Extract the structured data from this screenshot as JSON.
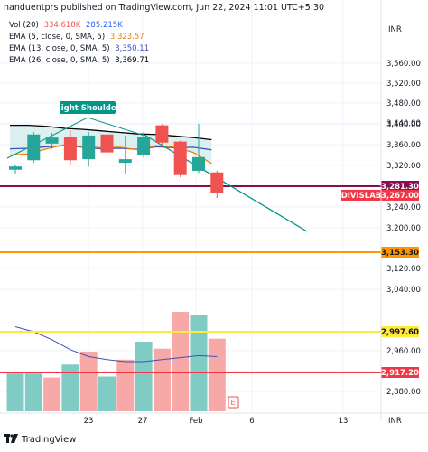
{
  "header": {
    "publisher_line": "nanduentprs published on TradingView.com, Jun 22, 2024 11:01 UTC+5:30"
  },
  "legend": {
    "vol": {
      "name": "Vol (20)",
      "v1": "334.618K",
      "v2": "285.215K",
      "c1": "#ef5350",
      "c2": "#2962ff"
    },
    "ema5": {
      "name": "EMA (5, close, 0, SMA, 5)",
      "value": "3,323.57",
      "color": "#f57c00"
    },
    "ema13": {
      "name": "EMA (13, close, 0, SMA, 5)",
      "value": "3,350.11",
      "color": "#3f51b5"
    },
    "ema26": {
      "name": "EMA (26, close, 0, SMA, 5)",
      "value": "3,369.71",
      "color": "#000000"
    }
  },
  "annotation": {
    "text": "Right Shoulder",
    "color": "#009688"
  },
  "footer": {
    "brand": "TradingView"
  },
  "chart_data": {
    "type": "candlestick",
    "currency": "INR",
    "y_ticks": [
      2880,
      2960,
      3040,
      3120,
      3200,
      3240,
      3320,
      3360,
      3400,
      3440,
      3480,
      3520,
      3560
    ],
    "y_tick_labels": [
      "2,880.00",
      "2,960.00",
      "3,040.00",
      "3,120.00",
      "3,200.00",
      "3,240.00",
      "3,320.00",
      "3,360.00",
      "3,400.00",
      "3,440.00",
      "3,480.00",
      "3,520.00",
      "3,560.00"
    ],
    "x_ticks": [
      "23",
      "27",
      "Feb",
      "6",
      "13"
    ],
    "candles": [
      {
        "o": 3312,
        "h": 3322,
        "l": 3305,
        "c": 3318
      },
      {
        "o": 3330,
        "h": 3385,
        "l": 3325,
        "c": 3380
      },
      {
        "o": 3362,
        "h": 3383,
        "l": 3352,
        "c": 3374
      },
      {
        "o": 3375,
        "h": 3388,
        "l": 3320,
        "c": 3330
      },
      {
        "o": 3332,
        "h": 3385,
        "l": 3318,
        "c": 3378
      },
      {
        "o": 3380,
        "h": 3386,
        "l": 3340,
        "c": 3345
      },
      {
        "o": 3325,
        "h": 3378,
        "l": 3305,
        "c": 3332
      },
      {
        "o": 3340,
        "h": 3385,
        "l": 3335,
        "c": 3375
      },
      {
        "o": 3398,
        "h": 3404,
        "l": 3358,
        "c": 3364
      },
      {
        "o": 3366,
        "h": 3368,
        "l": 3298,
        "c": 3302
      },
      {
        "o": 3310,
        "h": 3418,
        "l": 3306,
        "c": 3336
      },
      {
        "o": 3307,
        "h": 3310,
        "l": 3258,
        "c": 3267
      }
    ],
    "volume": [
      0.38,
      0.38,
      0.34,
      0.47,
      0.6,
      0.35,
      0.52,
      0.7,
      0.63,
      1.0,
      0.97,
      0.73
    ],
    "ema5": [
      3340,
      3342,
      3352,
      3360,
      3356,
      3354,
      3355,
      3350,
      3358,
      3355,
      3345,
      3323.57
    ],
    "ema13": [
      3352,
      3353,
      3356,
      3358,
      3355,
      3352,
      3353,
      3351,
      3356,
      3354,
      3355,
      3350.11
    ],
    "ema26": [
      3398,
      3398,
      3396,
      3392,
      3390,
      3387,
      3384,
      3381,
      3380,
      3377,
      3374,
      3369.71
    ],
    "vol_ma": [
      0.85,
      0.8,
      0.72,
      0.62,
      0.55,
      0.52,
      0.5,
      0.5,
      0.52,
      0.54,
      0.56,
      0.55
    ],
    "h_lines": [
      {
        "value": 3281.3,
        "label": "3,281.30",
        "color": "#880e4f"
      },
      {
        "value": 3153.3,
        "label": "3,153.30",
        "color": "#ff9800"
      },
      {
        "value": 2997.6,
        "label": "2,997.60",
        "color": "#ffeb3b"
      },
      {
        "value": 2917.2,
        "label": "2,917.20",
        "color": "#f23645"
      }
    ],
    "last_price": {
      "symbol": "DIVISLAB",
      "value": "3,267.00",
      "color": "#f23645"
    },
    "trendline": {
      "from_index": 5,
      "from_price": 3405,
      "to_index": 17,
      "to_price": 3188
    },
    "volume_colors": [
      "#26a69a",
      "#26a69a",
      "#ef5350",
      "#26a69a",
      "#ef5350",
      "#26a69a",
      "#ef5350",
      "#26a69a",
      "#ef5350",
      "#ef5350",
      "#26a69a",
      "#ef5350"
    ]
  }
}
